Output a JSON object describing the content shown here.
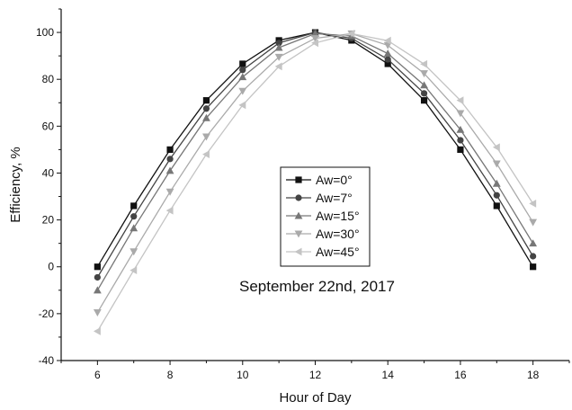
{
  "chart_data": {
    "type": "line",
    "title": "",
    "xlabel": "Hour of Day",
    "ylabel": "Efficiency, %",
    "xlim": [
      5,
      19
    ],
    "ylim": [
      -40,
      110
    ],
    "xticks": [
      6,
      8,
      10,
      12,
      14,
      16,
      18
    ],
    "yticks": [
      -40,
      -20,
      0,
      20,
      40,
      60,
      80,
      100
    ],
    "grid": false,
    "legend_position": "center",
    "annotation": "September 22nd, 2017",
    "x": [
      6,
      7,
      8,
      9,
      10,
      11,
      12,
      13,
      14,
      15,
      16,
      17,
      18
    ],
    "series": [
      {
        "name": "Aw=0°",
        "marker": "square",
        "color": "#111111",
        "values": [
          0,
          26,
          50,
          71,
          86.6,
          96.6,
          100,
          96.6,
          86.6,
          71,
          50,
          26,
          0
        ]
      },
      {
        "name": "Aw=7°",
        "marker": "circle",
        "color": "#444444",
        "values": [
          -4.5,
          21.5,
          46,
          67.5,
          84,
          95.5,
          100,
          97.5,
          88.5,
          74,
          54,
          30.5,
          4.5
        ]
      },
      {
        "name": "Aw=15°",
        "marker": "triangle-up",
        "color": "#777777",
        "values": [
          -10,
          16.5,
          41,
          63.5,
          81,
          93.5,
          99.5,
          98.5,
          91,
          77.5,
          58.5,
          35.5,
          10
        ]
      },
      {
        "name": "Aw=30°",
        "marker": "triangle-down",
        "color": "#aaaaaa",
        "values": [
          -19.5,
          6.5,
          32,
          55.5,
          75,
          89.5,
          97.5,
          99.5,
          94.5,
          82.5,
          65.5,
          44,
          19
        ]
      },
      {
        "name": "Aw=45°",
        "marker": "triangle-left",
        "color": "#c4c4c4",
        "values": [
          -27.5,
          -1.5,
          24,
          48,
          69,
          85.5,
          95.5,
          99.5,
          96.5,
          86.5,
          71,
          51,
          27
        ]
      }
    ]
  }
}
